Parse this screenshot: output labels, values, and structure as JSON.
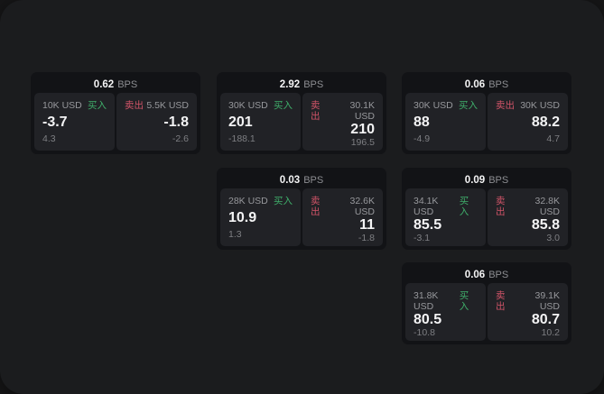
{
  "theme": {
    "outer_bg": "#161617",
    "window_bg": "#1b1c1e",
    "card_bg": "#121316",
    "panel_bg": "#212226",
    "text_primary": "#f4f4f5",
    "text_secondary": "#97989c",
    "buy_color": "#3fae6a",
    "sell_color": "#d15468"
  },
  "labels": {
    "bps_suffix": "BPS",
    "buy": "买入",
    "sell": "卖出"
  },
  "cards": [
    {
      "row": 1,
      "col": 1,
      "bps": "0.62",
      "buy": {
        "size": "10K USD",
        "value": "-3.7",
        "sub": "4.3"
      },
      "sell": {
        "size": "5.5K USD",
        "value": "-1.8",
        "sub": "-2.6"
      }
    },
    {
      "row": 1,
      "col": 2,
      "bps": "2.92",
      "buy": {
        "size": "30K USD",
        "value": "201",
        "sub": "-188.1"
      },
      "sell": {
        "size": "30.1K USD",
        "value": "210",
        "sub": "196.5"
      }
    },
    {
      "row": 1,
      "col": 3,
      "bps": "0.06",
      "buy": {
        "size": "30K USD",
        "value": "88",
        "sub": "-4.9"
      },
      "sell": {
        "size": "30K USD",
        "value": "88.2",
        "sub": "4.7"
      }
    },
    {
      "row": 2,
      "col": 2,
      "bps": "0.03",
      "buy": {
        "size": "28K USD",
        "value": "10.9",
        "sub": "1.3"
      },
      "sell": {
        "size": "32.6K USD",
        "value": "11",
        "sub": "-1.8"
      }
    },
    {
      "row": 2,
      "col": 3,
      "bps": "0.09",
      "buy": {
        "size": "34.1K USD",
        "value": "85.5",
        "sub": "-3.1"
      },
      "sell": {
        "size": "32.8K USD",
        "value": "85.8",
        "sub": "3.0"
      }
    },
    {
      "row": 3,
      "col": 3,
      "bps": "0.06",
      "buy": {
        "size": "31.8K USD",
        "value": "80.5",
        "sub": "-10.8"
      },
      "sell": {
        "size": "39.1K USD",
        "value": "80.7",
        "sub": "10.2"
      }
    }
  ]
}
